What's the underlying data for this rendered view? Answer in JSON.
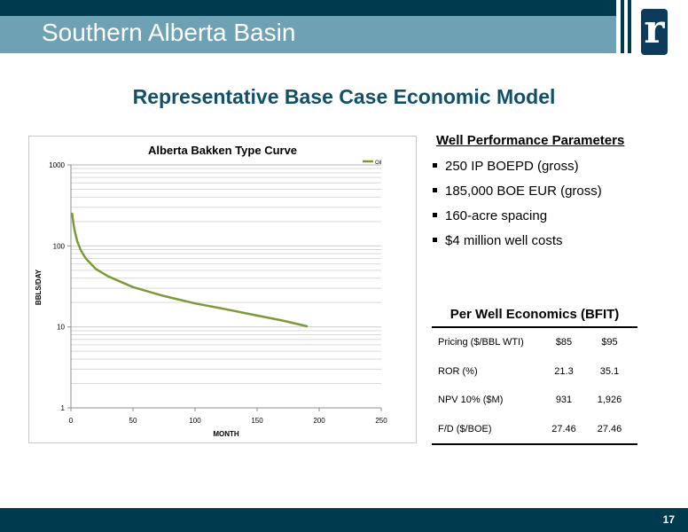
{
  "header": {
    "title": "Southern Alberta Basin"
  },
  "slide": {
    "subtitle": "Representative Base Case Economic Model",
    "page_number": "17"
  },
  "colors": {
    "dark_teal": "#003a4f",
    "title_bar": "#6fa1b5",
    "heading_blue": "#10506a",
    "curve_green": "#7a9a3a"
  },
  "logo": {
    "letter": "r"
  },
  "chart_data": {
    "type": "line",
    "title": "Alberta Bakken Type Curve",
    "xlabel": "MONTH",
    "ylabel": "BBLS/DAY",
    "xlim": [
      0,
      250
    ],
    "ylim": [
      1,
      1000
    ],
    "y_scale": "log",
    "x_ticks": [
      "0",
      "50",
      "100",
      "150",
      "200",
      "250"
    ],
    "y_ticks": [
      "1",
      "10",
      "100",
      "1000"
    ],
    "grid": true,
    "legend_position": "top-right",
    "series": [
      {
        "name": "Oil",
        "x": [
          1,
          2,
          3,
          5,
          8,
          12,
          20,
          30,
          50,
          75,
          100,
          125,
          150,
          170,
          190
        ],
        "y": [
          250,
          190,
          155,
          115,
          88,
          70,
          52,
          42,
          31,
          24,
          19.5,
          16.5,
          13.8,
          12,
          10.2
        ]
      }
    ]
  },
  "parameters": {
    "heading": "Well Performance Parameters",
    "items": [
      "250 IP BOEPD (gross)",
      "185,000 BOE EUR (gross)",
      "160-acre spacing",
      "$4 million well costs"
    ]
  },
  "economics": {
    "heading": "Per Well Economics (BFIT)",
    "rows": [
      {
        "label": "Pricing ($/BBL WTI)",
        "v1": "$85",
        "v2": "$95"
      },
      {
        "label": "ROR (%)",
        "v1": "21.3",
        "v2": "35.1"
      },
      {
        "label": "NPV 10% ($M)",
        "v1": "931",
        "v2": "1,926"
      },
      {
        "label": "F/D ($/BOE)",
        "v1": "27.46",
        "v2": "27.46"
      }
    ]
  }
}
